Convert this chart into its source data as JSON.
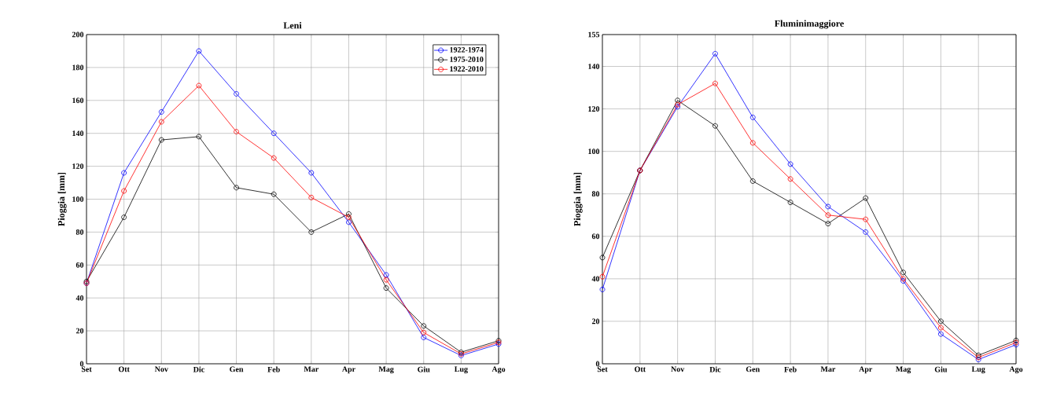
{
  "chart_data": [
    {
      "type": "line",
      "title": "Leni",
      "ylabel": "Pioggia [mm]",
      "categories": [
        "Set",
        "Ott",
        "Nov",
        "Dic",
        "Gen",
        "Feb",
        "Mar",
        "Apr",
        "Mag",
        "Giu",
        "Lug",
        "Ago"
      ],
      "series": [
        {
          "name": "1922-1974",
          "color": "#0000ff",
          "values": [
            49,
            116,
            153,
            190,
            164,
            140,
            116,
            86,
            54,
            16,
            5,
            12
          ]
        },
        {
          "name": "1975-2010",
          "color": "#000000",
          "values": [
            50,
            89,
            136,
            138,
            107,
            103,
            80,
            91,
            46,
            23,
            7,
            14
          ]
        },
        {
          "name": "1922-2010",
          "color": "#ff0000",
          "values": [
            49,
            105,
            147,
            169,
            141,
            125,
            101,
            89,
            51,
            19,
            6,
            13
          ]
        }
      ],
      "ylim": [
        0,
        200
      ],
      "yticks": [
        0,
        20,
        40,
        60,
        80,
        100,
        120,
        140,
        160,
        180,
        200
      ],
      "grid": true,
      "legend": "top right",
      "marker": "circle",
      "line_style": "solid"
    },
    {
      "type": "line",
      "title": "Fluminimaggiore",
      "ylabel": "Pioggia [mm]",
      "categories": [
        "Set",
        "Ott",
        "Nov",
        "Dic",
        "Gen",
        "Feb",
        "Mar",
        "Apr",
        "Mag",
        "Giu",
        "Lug",
        "Ago"
      ],
      "series": [
        {
          "color": "#0000ff",
          "values": [
            35,
            91,
            121,
            146,
            116,
            94,
            74,
            62,
            39,
            14,
            2,
            9
          ]
        },
        {
          "color": "#000000",
          "values": [
            50,
            91,
            124,
            112,
            86,
            76,
            66,
            78,
            43,
            20,
            4,
            11
          ]
        },
        {
          "color": "#ff0000",
          "values": [
            41,
            91,
            122,
            132,
            104,
            87,
            70,
            68,
            40,
            17,
            3,
            10
          ]
        }
      ],
      "ylim": [
        0,
        155
      ],
      "yticks": [
        0,
        20,
        40,
        60,
        80,
        100,
        120,
        140,
        155
      ],
      "grid": true,
      "legend": false,
      "marker": "circle",
      "line_style": "solid"
    }
  ]
}
